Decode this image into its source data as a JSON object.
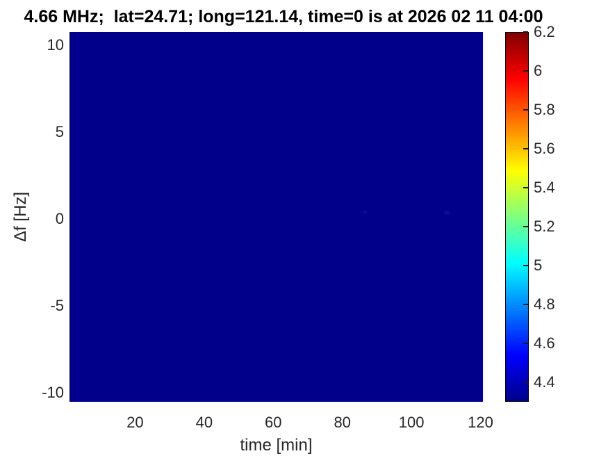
{
  "chart_data": {
    "type": "heatmap",
    "title": "4.66 MHz;  lat=24.71; long=121.14, time=0 is at 2026 02 11 04:00",
    "xlabel": "time [min]",
    "ylabel": "Δf [Hz]",
    "xlim": [
      1,
      120.7
    ],
    "ylim": [
      -10.5,
      10.75
    ],
    "xticks": {
      "values": [
        20,
        40,
        60,
        80,
        100,
        120
      ],
      "labels": [
        "20",
        "40",
        "60",
        "80",
        "100",
        "120"
      ]
    },
    "yticks": {
      "values": [
        10,
        5,
        0,
        -5,
        -10
      ],
      "labels": [
        "10",
        "5",
        "0",
        "-5",
        "-10"
      ]
    },
    "grid": false,
    "legend_position": "none",
    "colormap": "jet",
    "clim": [
      4.3,
      6.2
    ],
    "colorbar": {
      "position": "right",
      "ticks": {
        "values": [
          6.2,
          6,
          5.8,
          5.6,
          5.4,
          5.2,
          5,
          4.8,
          4.6,
          4.4
        ],
        "labels": [
          "6.2",
          "6",
          "5.8",
          "5.6",
          "5.4",
          "5.2",
          "5",
          "4.8",
          "4.6",
          "4.4"
        ]
      },
      "gradient_stops": [
        {
          "value": 4.3,
          "color": "#00008b"
        },
        {
          "value": 4.5375,
          "color": "#0000ff"
        },
        {
          "value": 5.0125,
          "color": "#00ffff"
        },
        {
          "value": 5.4875,
          "color": "#ffff00"
        },
        {
          "value": 5.9625,
          "color": "#ff0000"
        },
        {
          "value": 6.2,
          "color": "#800000"
        }
      ]
    },
    "field": {
      "description": "uniform field at colormap minimum over full time/frequency extent",
      "uniform_value": 4.3,
      "fill_color": "#00008b",
      "features": [
        {
          "x": 86.5,
          "y": 0.4,
          "value": 4.4,
          "color": "#1818a8",
          "w": 7,
          "h": 3
        },
        {
          "x": 110.2,
          "y": 0.35,
          "value": 4.4,
          "color": "#1818a8",
          "w": 8,
          "h": 4
        }
      ]
    }
  }
}
